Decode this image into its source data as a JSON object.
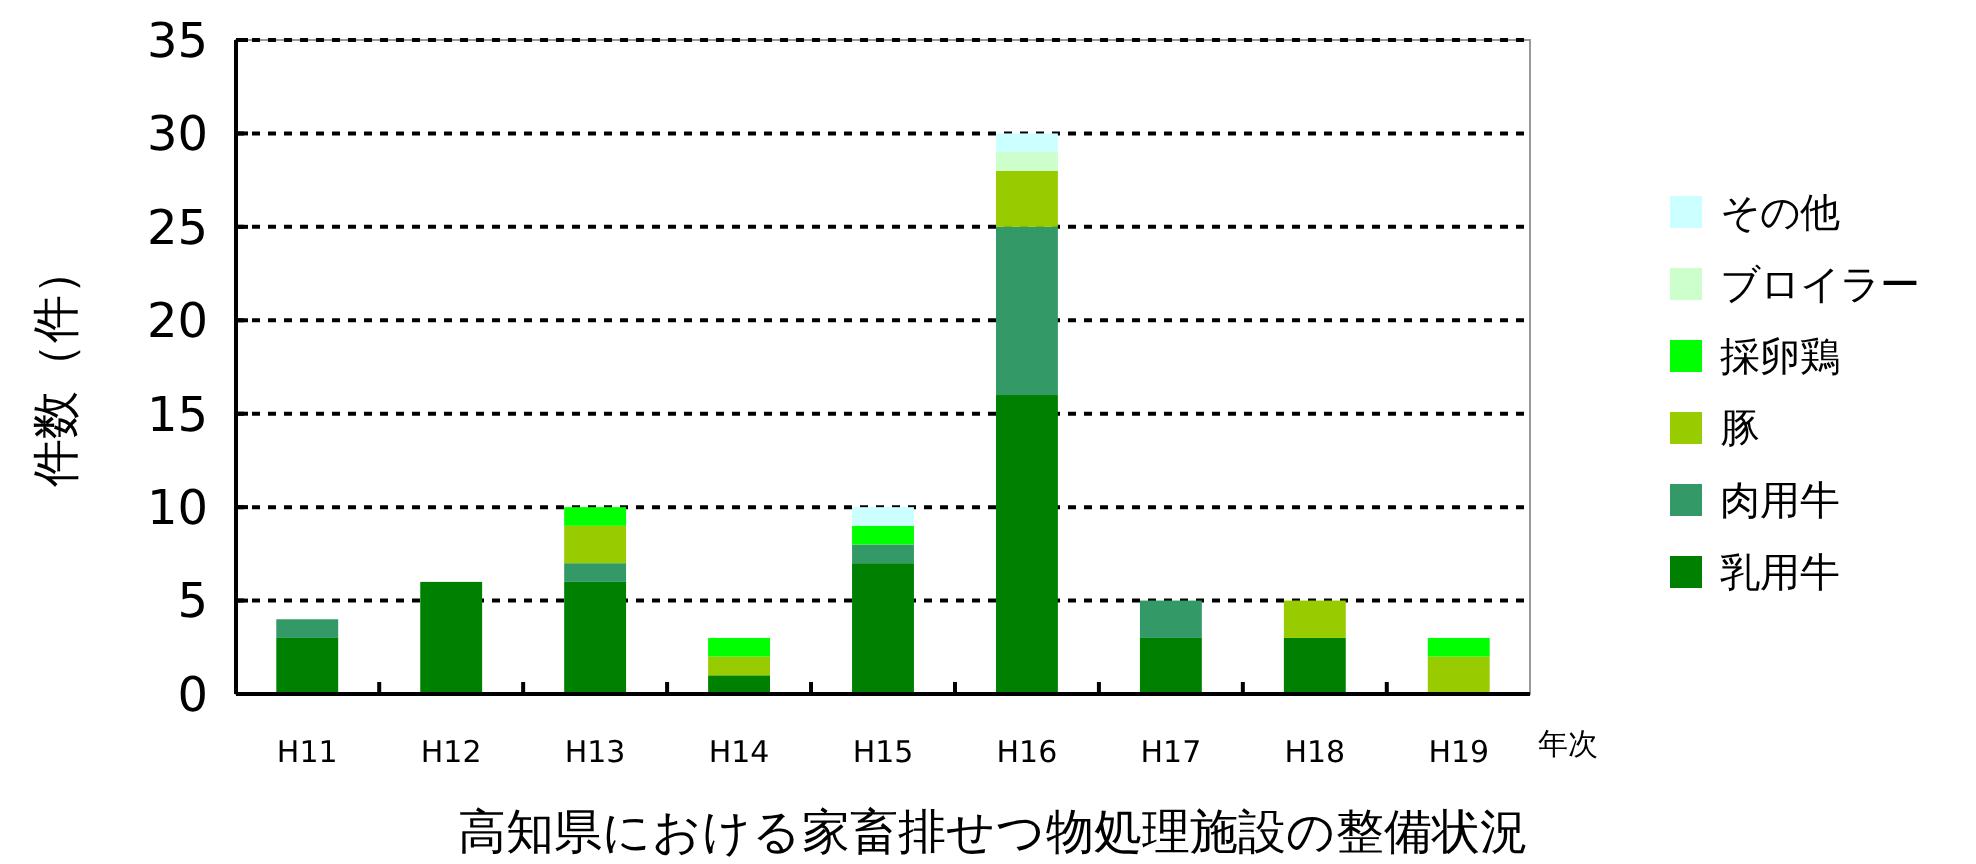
{
  "chart_data": {
    "type": "bar",
    "stacked": true,
    "title": "高知県における家畜排せつ物処理施設の整備状況",
    "xlabel": "年次",
    "ylabel": "件数（件）",
    "categories": [
      "H11",
      "H12",
      "H13",
      "H14",
      "H15",
      "H16",
      "H17",
      "H18",
      "H19"
    ],
    "series": [
      {
        "name": "乳用牛",
        "color": "#008000",
        "values": [
          3,
          6,
          6,
          1,
          7,
          16,
          3,
          3,
          0
        ]
      },
      {
        "name": "肉用牛",
        "color": "#339966",
        "values": [
          1,
          0,
          1,
          0,
          1,
          9,
          2,
          0,
          0
        ]
      },
      {
        "name": "豚",
        "color": "#99cc00",
        "values": [
          0,
          0,
          2,
          1,
          0,
          3,
          0,
          2,
          2
        ]
      },
      {
        "name": "採卵鶏",
        "color": "#00ff00",
        "values": [
          0,
          0,
          1,
          1,
          1,
          0,
          0,
          0,
          1
        ]
      },
      {
        "name": "ブロイラー",
        "color": "#ccffcc",
        "values": [
          0,
          0,
          0,
          0,
          0,
          1,
          0,
          0,
          0
        ]
      },
      {
        "name": "その他",
        "color": "#ccffff",
        "values": [
          0,
          0,
          0,
          0,
          1,
          1,
          0,
          0,
          0
        ]
      }
    ],
    "ylim": [
      0,
      35
    ],
    "yticks": [
      0,
      5,
      10,
      15,
      20,
      25,
      30,
      35
    ],
    "grid": "y",
    "legend": "right"
  }
}
